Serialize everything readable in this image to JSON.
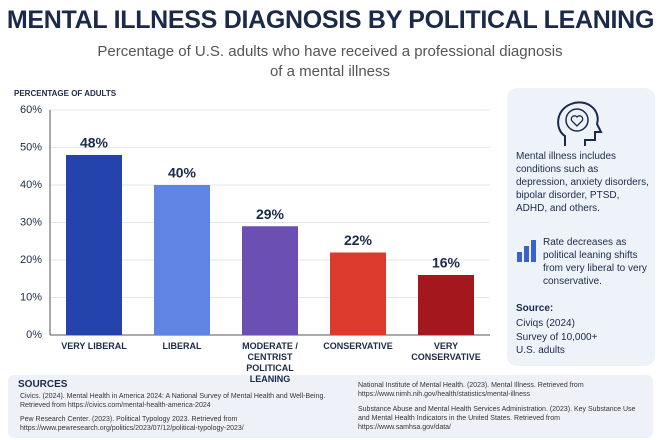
{
  "chart_data": {
    "type": "bar",
    "title": "MENTAL ILLNESS DIAGNOSIS BY POLITICAL LEANING",
    "subtitle": "Percentage of U.S. adults who have received a professional diagnosis of a mental illness",
    "y_label": "PERCENTAGE OF ADULTS",
    "categories": [
      "VERY LIBERAL",
      "LIBERAL",
      "MODERATE / CENTRIST POLITICAL LEANING",
      "CONSERVATIVE",
      "VERY CONSERVATIVE"
    ],
    "values": [
      48,
      40,
      29,
      22,
      16
    ],
    "value_labels": [
      "48%",
      "40%",
      "29%",
      "22%",
      "16%"
    ],
    "colors": [
      "#2443ad",
      "#5f84e3",
      "#6b4fb3",
      "#dc3a2c",
      "#a4171d"
    ],
    "ylim": [
      0,
      60
    ],
    "yticks": [
      {
        "value": 0,
        "label": "0%"
      },
      {
        "value": 10,
        "label": "10%"
      },
      {
        "value": 20,
        "label": "20%"
      },
      {
        "value": 30,
        "label": "30%"
      },
      {
        "value": 40,
        "label": "40%"
      },
      {
        "value": 50,
        "label": "50%"
      },
      {
        "value": 60,
        "label": "60%"
      }
    ],
    "grid": true
  },
  "side_panel": {
    "definition": "Mental illness includes conditions such as depression, anxiety disorders, bipolar disorder, PTSD, ADHD, and others.",
    "trend": "Rate decreases as political leaning shifts from very liberal to very conservative.",
    "source_heading": "Source:",
    "source": "Civiqs (2024)",
    "survey": "Survey of 10,000+ U.S. adults"
  },
  "sources": {
    "heading": "SOURCES",
    "items": [
      "Civics. (2024). Mental Health in America 2024: A National Survey of Mental Health and Well-Being. Retrieved from https://civics.com/mental-health-america-2024",
      "Pew Research Center. (2023). Political Typology 2023. Retrieved from https://www.pewresearch.org/politics/2023/07/12/political-typology-2023/",
      "National Institute of Mental Health. (2023). Mental Illness. Retrieved from https://www.nimh.nih.gov/health/statistics/mental-illness",
      "Substance Abuse and Mental Health Services Administration. (2023). Key Substance Use and Mental Health Indicators in the United States. Retrieved from https://www.samhsa.gov/data/"
    ]
  }
}
